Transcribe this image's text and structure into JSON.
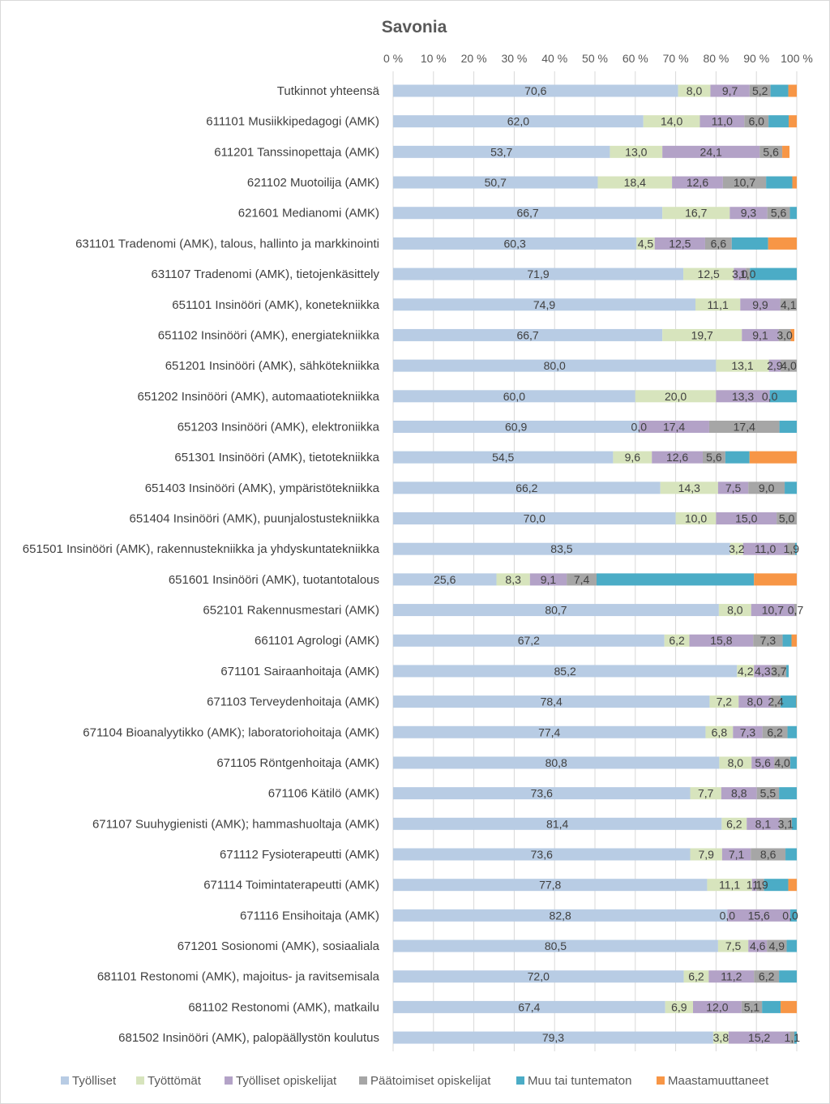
{
  "chart_data": {
    "type": "bar",
    "orientation": "horizontal",
    "stacked": "percent",
    "title": "Savonia",
    "xlim": [
      0,
      100
    ],
    "x_ticks": [
      "0 %",
      "10 %",
      "20 %",
      "30 %",
      "40 %",
      "50 %",
      "60 %",
      "70 %",
      "80 %",
      "90 %",
      "100 %"
    ],
    "legend_position": "bottom",
    "gridlines": true,
    "categories": [
      "Tutkinnot yhteensä",
      "611101 Musiikkipedagogi (AMK)",
      "611201 Tanssinopettaja (AMK)",
      "621102 Muotoilija (AMK)",
      "621601 Medianomi (AMK)",
      "631101 Tradenomi (AMK), talous, hallinto ja markkinointi",
      "631107 Tradenomi (AMK), tietojenkäsittely",
      "651101 Insinööri (AMK), konetekniikka",
      "651102 Insinööri (AMK), energiatekniikka",
      "651201 Insinööri (AMK), sähkötekniikka",
      "651202 Insinööri (AMK), automaatiotekniikka",
      "651203 Insinööri (AMK), elektroniikka",
      "651301 Insinööri (AMK), tietotekniikka",
      "651403 Insinööri (AMK), ympäristötekniikka",
      "651404 Insinööri (AMK), puunjalostustekniikka",
      "651501 Insinööri (AMK), rakennustekniikka ja yhdyskuntatekniikka",
      "651601 Insinööri (AMK), tuotantotalous",
      "652101 Rakennusmestari (AMK)",
      "661101 Agrologi (AMK)",
      "671101 Sairaanhoitaja (AMK)",
      "671103 Terveydenhoitaja (AMK)",
      "671104 Bioanalyytikko (AMK); laboratoriohoitaja (AMK)",
      "671105 Röntgenhoitaja (AMK)",
      "671106 Kätilö (AMK)",
      "671107 Suuhygienisti (AMK); hammashuoltaja (AMK)",
      "671112 Fysioterapeutti (AMK)",
      "671114 Toimintaterapeutti (AMK)",
      "671116 Ensihoitaja (AMK)",
      "671201 Sosionomi (AMK), sosiaaliala",
      "681101 Restonomi (AMK), majoitus- ja ravitsemisala",
      "681102 Restonomi (AMK), matkailu",
      "681502 Insinööri (AMK), palopäällystön koulutus"
    ],
    "series": [
      {
        "name": "Työlliset",
        "color": "#b8cce4",
        "values": [
          70.6,
          62.0,
          53.7,
          50.7,
          66.7,
          60.3,
          71.9,
          74.9,
          66.7,
          80.0,
          60.0,
          60.9,
          54.5,
          66.2,
          70.0,
          83.5,
          25.6,
          80.7,
          67.2,
          85.2,
          78.4,
          77.4,
          80.8,
          73.6,
          81.4,
          73.6,
          77.8,
          82.8,
          80.5,
          72.0,
          67.4,
          79.3
        ],
        "labels": [
          "70,6",
          "62,0",
          "53,7",
          "50,7",
          "66,7",
          "60,3",
          "71,9",
          "74,9",
          "66,7",
          "80,0",
          "60,0",
          "60,9",
          "54,5",
          "66,2",
          "70,0",
          "83,5",
          "25,6",
          "80,7",
          "67,2",
          "85,2",
          "78,4",
          "77,4",
          "80,8",
          "73,6",
          "81,4",
          "73,6",
          "77,8",
          "82,8",
          "80,5",
          "72,0",
          "67,4",
          "79,3"
        ]
      },
      {
        "name": "Työttömät",
        "color": "#d7e4bd",
        "values": [
          8.0,
          14.0,
          13.0,
          18.4,
          16.7,
          4.5,
          12.5,
          11.1,
          19.7,
          13.1,
          20.0,
          0.0,
          9.6,
          14.3,
          10.0,
          3.2,
          8.3,
          8.0,
          6.2,
          4.2,
          7.2,
          6.8,
          8.0,
          7.7,
          6.2,
          7.9,
          11.1,
          0.0,
          7.5,
          6.2,
          6.9,
          3.8
        ],
        "labels": [
          "8,0",
          "14,0",
          "13,0",
          "18,4",
          "16,7",
          "4,5",
          "12,5",
          "11,1",
          "19,7",
          "13,1",
          "20,0",
          "0,0",
          "9,6",
          "14,3",
          "10,0",
          "3,2",
          "8,3",
          "8,0",
          "6,2",
          "4,2",
          "7,2",
          "6,8",
          "8,0",
          "7,7",
          "6,2",
          "7,9",
          "11,1",
          "0,0",
          "7,5",
          "6,2",
          "6,9",
          "3,8"
        ]
      },
      {
        "name": "Työlliset opiskelijat",
        "color": "#b3a2c7",
        "values": [
          9.7,
          11.0,
          24.1,
          12.6,
          9.3,
          12.5,
          3.0,
          9.9,
          9.1,
          2.9,
          13.3,
          17.4,
          12.6,
          7.5,
          15.0,
          11.0,
          9.1,
          10.7,
          15.8,
          4.3,
          8.0,
          7.3,
          5.6,
          8.8,
          8.1,
          7.1,
          1.1,
          15.6,
          4.6,
          11.2,
          12.0,
          15.2
        ],
        "labels": [
          "9,7",
          "11,0",
          "24,1",
          "12,6",
          "9,3",
          "12,5",
          "3,0",
          "9,9",
          "9,1",
          "2,9",
          "13,3",
          "17,4",
          "12,6",
          "7,5",
          "15,0",
          "11,0",
          "9,1",
          "10,7",
          "15,8",
          "4,3",
          "8,0",
          "7,3",
          "5,6",
          "8,8",
          "8,1",
          "7,1",
          "1,1",
          "15,6",
          "4,6",
          "11,2",
          "12,0",
          "15,2"
        ]
      },
      {
        "name": "Päätoimiset opiskelijat",
        "color": "#a6a6a6",
        "values": [
          5.2,
          6.0,
          5.6,
          10.7,
          5.6,
          6.6,
          1.0,
          4.1,
          3.0,
          4.0,
          0.0,
          17.4,
          5.6,
          9.0,
          5.0,
          1.9,
          7.4,
          0.7,
          7.3,
          3.7,
          2.4,
          6.2,
          4.0,
          5.5,
          3.1,
          8.6,
          1.9,
          0.0,
          4.9,
          6.2,
          5.1,
          1.1
        ],
        "labels": [
          "5,2",
          "6,0",
          "5,6",
          "10,7",
          "5,6",
          "6,6",
          "1,0",
          "4,1",
          "3,0",
          "4,0",
          "0,0",
          "17,4",
          "5,6",
          "9,0",
          "5,0",
          "1,9",
          "7,4",
          "0,7",
          "7,3",
          "3,7",
          "2,4",
          "6,2",
          "4,0",
          "5,5",
          "3,1",
          "8,6",
          "1,9",
          "0,0",
          "4,9",
          "6,2",
          "5,1",
          "1,1"
        ]
      },
      {
        "name": "Muu tai tuntematon",
        "color": "#4bacc6",
        "values": [
          4.4,
          5.0,
          0.0,
          6.5,
          1.7,
          9.0,
          11.6,
          0.0,
          0.0,
          0.0,
          6.7,
          4.3,
          6.0,
          3.0,
          0.0,
          0.4,
          39.0,
          0.0,
          2.2,
          0.6,
          3.9,
          2.3,
          1.6,
          4.4,
          1.2,
          2.8,
          6.0,
          1.6,
          2.5,
          4.4,
          4.6,
          0.6
        ],
        "labels": [
          "",
          "",
          "",
          "",
          "",
          "",
          "",
          "",
          "",
          "",
          "",
          "",
          "",
          "",
          "",
          "",
          "",
          "",
          "",
          "",
          "",
          "",
          "",
          "",
          "",
          "",
          "",
          "",
          "",
          "",
          "",
          ""
        ]
      },
      {
        "name": "Maastamuuttaneet",
        "color": "#f79646",
        "values": [
          2.1,
          2.0,
          1.8,
          1.1,
          0.0,
          7.1,
          0.0,
          0.0,
          0.9,
          0.0,
          0.0,
          0.0,
          11.7,
          0.0,
          0.0,
          0.0,
          10.6,
          0.0,
          1.3,
          0.0,
          0.9,
          0.0,
          0.0,
          0.0,
          0.0,
          0.0,
          2.1,
          0.0,
          0.0,
          0.0,
          4.0,
          0.0
        ],
        "labels": [
          "",
          "",
          "",
          "",
          "",
          "",
          "",
          "",
          "",
          "",
          "",
          "",
          "",
          "",
          "",
          "",
          "",
          "",
          "",
          "",
          "",
          "",
          "",
          "",
          "",
          "",
          "",
          "",
          "",
          "",
          "",
          ""
        ]
      }
    ]
  }
}
